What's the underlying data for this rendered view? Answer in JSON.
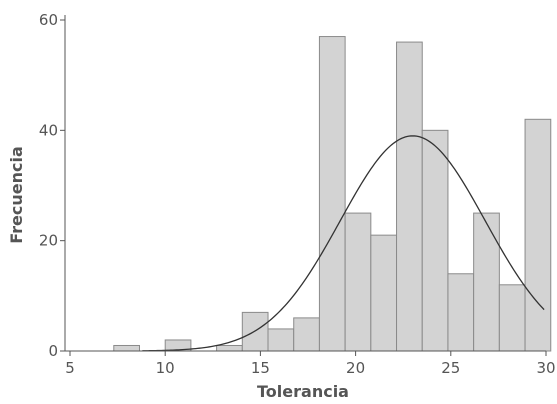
{
  "chart_data": {
    "type": "bar",
    "title": "",
    "xlabel": "Tolerancia",
    "ylabel": "Frecuencia",
    "xlim": [
      5,
      30
    ],
    "ylim": [
      0,
      60
    ],
    "x_ticks": [
      5,
      10,
      15,
      20,
      25,
      30
    ],
    "y_ticks": [
      0,
      20,
      40,
      60
    ],
    "bin_width": 1.35,
    "bins": [
      {
        "x0": 7.3,
        "value": 1
      },
      {
        "x0": 8.65,
        "value": 0
      },
      {
        "x0": 10.0,
        "value": 2
      },
      {
        "x0": 11.35,
        "value": 0
      },
      {
        "x0": 12.7,
        "value": 1
      },
      {
        "x0": 14.05,
        "value": 7
      },
      {
        "x0": 15.4,
        "value": 4
      },
      {
        "x0": 16.75,
        "value": 6
      },
      {
        "x0": 18.1,
        "value": 57
      },
      {
        "x0": 19.45,
        "value": 25
      },
      {
        "x0": 20.8,
        "value": 21
      },
      {
        "x0": 22.15,
        "value": 56
      },
      {
        "x0": 23.5,
        "value": 40
      },
      {
        "x0": 24.85,
        "value": 14
      },
      {
        "x0": 26.2,
        "value": 25
      },
      {
        "x0": 27.55,
        "value": 12
      },
      {
        "x0": 28.9,
        "value": 42
      }
    ],
    "normal_curve": {
      "mean": 23.0,
      "sd": 3.8,
      "peak": 39
    },
    "bar_fill": "#d3d3d3",
    "bar_stroke": "#8a8a8a",
    "curve_color": "#333333",
    "grid": false
  }
}
